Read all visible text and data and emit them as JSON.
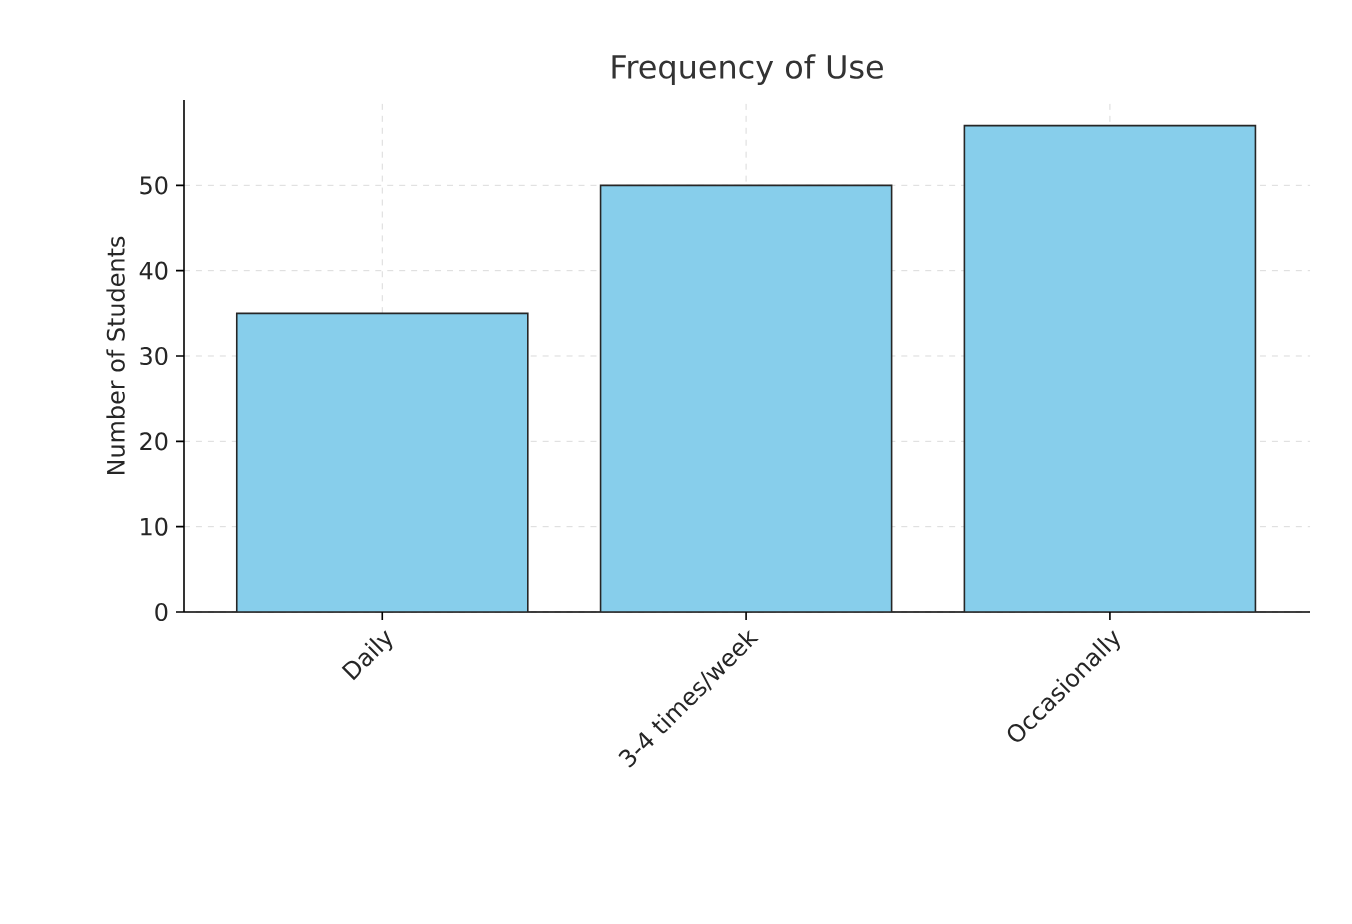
{
  "chart_data": {
    "type": "bar",
    "title": "Frequency of Use",
    "ylabel": "Number of Students",
    "categories": [
      "Daily",
      "3-4 times/week",
      "Occasionally"
    ],
    "values": [
      35,
      50,
      57
    ],
    "color": "#87ceeb",
    "ylim": [
      0,
      60
    ],
    "yticks": [
      0,
      10,
      20,
      30,
      40,
      50
    ],
    "grid": true
  }
}
